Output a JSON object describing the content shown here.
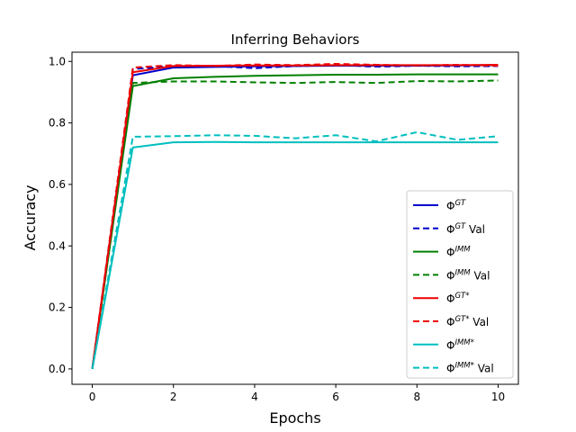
{
  "chart_data": {
    "type": "line",
    "title": "Inferring Behaviors",
    "xlabel": "Epochs",
    "ylabel": "Accuracy",
    "xlim": [
      -0.5,
      10.5
    ],
    "ylim": [
      -0.05,
      1.03
    ],
    "xticks": [
      0,
      2,
      4,
      6,
      8,
      10
    ],
    "yticks": [
      0.0,
      0.2,
      0.4,
      0.6,
      0.8,
      1.0
    ],
    "ytick_labels": [
      "0.0",
      "0.2",
      "0.4",
      "0.6",
      "0.8",
      "1.0"
    ],
    "grid": false,
    "legend_position": "lower-right",
    "x": [
      0,
      1,
      2,
      3,
      4,
      5,
      6,
      7,
      8,
      9,
      10
    ],
    "series": [
      {
        "name": "Φ^GT",
        "base": "Φ",
        "sup": "GT",
        "suffix": "",
        "color": "#0000cc",
        "dash": false,
        "values": [
          0.0,
          0.955,
          0.98,
          0.982,
          0.984,
          0.985,
          0.986,
          0.986,
          0.986,
          0.987,
          0.988
        ]
      },
      {
        "name": "Φ^GT Val",
        "base": "Φ",
        "sup": "GT",
        "suffix": " Val",
        "color": "#0000cc",
        "dash": true,
        "values": [
          0.0,
          0.975,
          0.985,
          0.985,
          0.978,
          0.985,
          0.988,
          0.983,
          0.986,
          0.984,
          0.985
        ]
      },
      {
        "name": "Φ^IMM",
        "base": "Φ",
        "sup": "IMM",
        "suffix": "",
        "color": "#008000",
        "dash": false,
        "values": [
          0.0,
          0.92,
          0.945,
          0.95,
          0.953,
          0.955,
          0.957,
          0.957,
          0.958,
          0.958,
          0.958
        ]
      },
      {
        "name": "Φ^IMM Val",
        "base": "Φ",
        "sup": "IMM",
        "suffix": " Val",
        "color": "#008000",
        "dash": true,
        "values": [
          0.0,
          0.93,
          0.935,
          0.935,
          0.932,
          0.93,
          0.933,
          0.93,
          0.936,
          0.935,
          0.938
        ]
      },
      {
        "name": "Φ^GT*",
        "base": "Φ",
        "sup": "GT*",
        "suffix": "",
        "color": "#ee0000",
        "dash": false,
        "values": [
          0.0,
          0.965,
          0.985,
          0.986,
          0.987,
          0.987,
          0.988,
          0.988,
          0.988,
          0.988,
          0.989
        ]
      },
      {
        "name": "Φ^GT* Val",
        "base": "Φ",
        "sup": "GT*",
        "suffix": " Val",
        "color": "#ee0000",
        "dash": true,
        "values": [
          0.0,
          0.98,
          0.988,
          0.985,
          0.99,
          0.988,
          0.992,
          0.989,
          0.987,
          0.989,
          0.986
        ]
      },
      {
        "name": "Φ^IMM*",
        "base": "Φ",
        "sup": "IMM*",
        "suffix": "",
        "color": "#00bfbf",
        "dash": false,
        "values": [
          0.0,
          0.72,
          0.737,
          0.738,
          0.737,
          0.737,
          0.737,
          0.737,
          0.737,
          0.737,
          0.737
        ]
      },
      {
        "name": "Φ^IMM* Val",
        "base": "Φ",
        "sup": "IMM*",
        "suffix": " Val",
        "color": "#00bfbf",
        "dash": true,
        "values": [
          0.0,
          0.755,
          0.757,
          0.76,
          0.758,
          0.75,
          0.76,
          0.74,
          0.77,
          0.745,
          0.757
        ]
      }
    ]
  }
}
